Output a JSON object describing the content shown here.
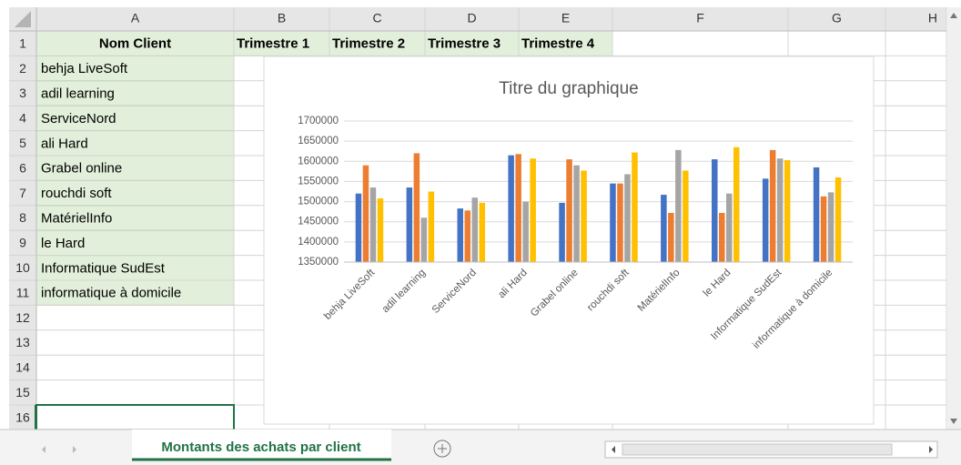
{
  "sheet": {
    "columns": [
      "A",
      "B",
      "C",
      "D",
      "E",
      "F",
      "G",
      "H"
    ],
    "rows": [
      1,
      2,
      3,
      4,
      5,
      6,
      7,
      8,
      9,
      10,
      11,
      12,
      13,
      14,
      15,
      16
    ],
    "header": [
      "Nom Client",
      "Trimestre 1",
      "Trimestre 2",
      "Trimestre 3",
      "Trimestre 4"
    ],
    "clients": [
      "behja LiveSoft",
      "adil learning",
      "ServiceNord",
      "ali Hard",
      "Grabel online",
      "rouchdi soft",
      "MatérielInfo",
      "le Hard",
      "Informatique SudEst",
      "informatique à domicile"
    ],
    "tab": "Montants des achats par client"
  },
  "chart_data": {
    "type": "bar",
    "title": "Titre du graphique",
    "categories": [
      "behja LiveSoft",
      "adil learning",
      "ServiceNord",
      "ali Hard",
      "Grabel online",
      "rouchdi soft",
      "MatérielInfo",
      "le Hard",
      "Informatique SudEst",
      "informatique à domicile"
    ],
    "series": [
      {
        "name": "Trimestre 1",
        "color": "#4472c4",
        "values": [
          1520000,
          1535000,
          1483000,
          1615000,
          1497000,
          1545000,
          1517000,
          1605000,
          1557000,
          1585000
        ]
      },
      {
        "name": "Trimestre 2",
        "color": "#ed7d31",
        "values": [
          1590000,
          1620000,
          1478000,
          1618000,
          1605000,
          1545000,
          1472000,
          1472000,
          1628000,
          1513000
        ]
      },
      {
        "name": "Trimestre 3",
        "color": "#a5a5a5",
        "values": [
          1535000,
          1460000,
          1510000,
          1500000,
          1590000,
          1568000,
          1628000,
          1520000,
          1607000,
          1523000
        ]
      },
      {
        "name": "Trimestre 4",
        "color": "#ffc000",
        "values": [
          1508000,
          1525000,
          1497000,
          1607000,
          1577000,
          1622000,
          1577000,
          1635000,
          1603000,
          1560000
        ]
      }
    ],
    "ylim": [
      1350000,
      1700000
    ],
    "yticks": [
      1350000,
      1400000,
      1450000,
      1500000,
      1550000,
      1600000,
      1650000,
      1700000
    ],
    "grid": true
  }
}
